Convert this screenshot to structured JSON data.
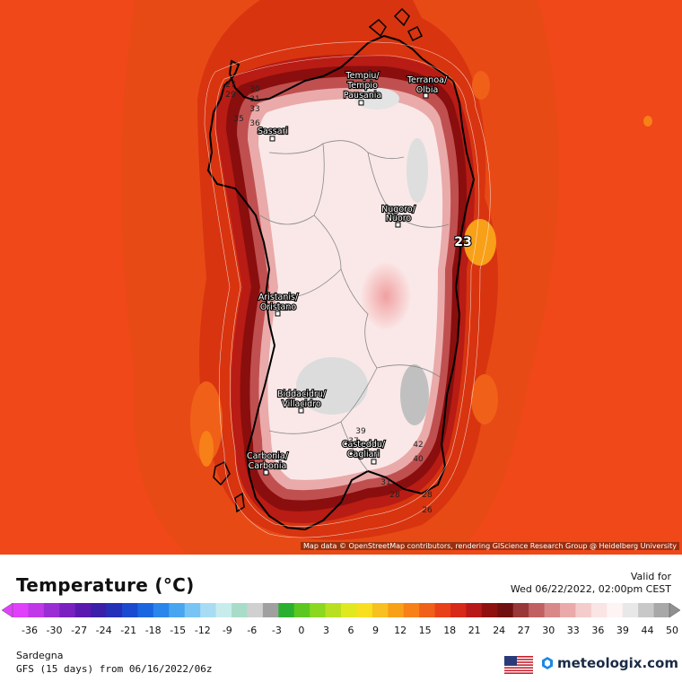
{
  "map": {
    "attribution": "Map data © OpenStreetMap contributors, rendering GIScience Research Group @ Heidelberg University",
    "cities": [
      {
        "line1": "Tempiu/",
        "line2": "Tempio",
        "line3": "Pausania"
      },
      {
        "line1": "Terranoa/",
        "line2": "Olbia",
        "line3": ""
      },
      {
        "line1": "Sassari",
        "line2": "",
        "line3": ""
      },
      {
        "line1": "Nugoro/",
        "line2": "Nuoro",
        "line3": ""
      },
      {
        "line1": "Aristanis/",
        "line2": "Oristano",
        "line3": ""
      },
      {
        "line1": "Biddacidru/",
        "line2": "Villacidro",
        "line3": ""
      },
      {
        "line1": "Casteddu/",
        "line2": "Cagliari",
        "line3": ""
      },
      {
        "line1": "Carbonia/",
        "line2": "Carbonia",
        "line3": ""
      }
    ],
    "contour_labels": [
      "27",
      "29",
      "30",
      "31",
      "33",
      "35",
      "36",
      "23",
      "39",
      "37",
      "42",
      "40",
      "31",
      "28",
      "28",
      "26"
    ]
  },
  "legend": {
    "title": "Temperature (°C)",
    "valid_label": "Valid for",
    "valid_time": "Wed 06/22/2022, 02:00pm CEST",
    "ticks": [
      "-36",
      "-30",
      "-27",
      "-24",
      "-21",
      "-18",
      "-15",
      "-12",
      "-9",
      "-6",
      "-3",
      "0",
      "3",
      "6",
      "9",
      "12",
      "15",
      "18",
      "21",
      "24",
      "27",
      "30",
      "33",
      "36",
      "39",
      "44",
      "50"
    ],
    "colors": [
      "#e040fb",
      "#c038e8",
      "#9a2ed4",
      "#7a20c0",
      "#5a18b0",
      "#3a20a8",
      "#2430b8",
      "#1a4ad0",
      "#1a66e0",
      "#2a86ea",
      "#48a6f0",
      "#78c4f4",
      "#a8dcf4",
      "#c8ecec",
      "#a8dcc8",
      "#d0d0d0",
      "#a0a0a0",
      "#2ab030",
      "#5ac820",
      "#8ad820",
      "#b8e020",
      "#e0e820",
      "#f8e020",
      "#f8c020",
      "#f8a018",
      "#f88018",
      "#f06018",
      "#e84018",
      "#d82818",
      "#b81818",
      "#901010",
      "#701010",
      "#983838",
      "#c06060",
      "#d88888",
      "#eaaaaa",
      "#f4cccc",
      "#fae4e4",
      "#fff4f4",
      "#e8e8e8",
      "#c8c8c8",
      "#a8a8a8"
    ],
    "region": "Sardegna",
    "model": "GFS (15 days) from  06/16/2022/06z",
    "brand": "meteologix.com"
  }
}
